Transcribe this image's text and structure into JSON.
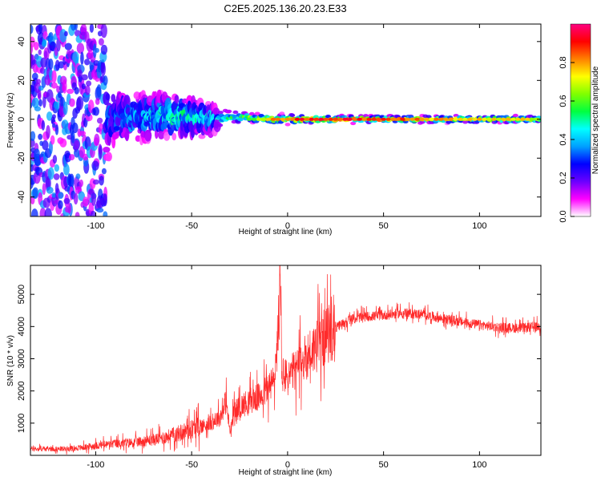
{
  "title": "C2E5.2025.136.20.23.E33",
  "chart_data": [
    {
      "type": "heatmap",
      "title": "C2E5.2025.136.20.23.E33",
      "xlabel": "Height of straight line (km)",
      "ylabel": "Frequency (Hz)",
      "xlim": [
        -134,
        132
      ],
      "ylim": [
        -50,
        49
      ],
      "xticks": [
        -100,
        -50,
        0,
        50,
        100
      ],
      "yticks": [
        -40,
        -20,
        0,
        20,
        40
      ],
      "colorbar": {
        "label": "Normalized spectral amplitude",
        "range": [
          0.0,
          1.0
        ],
        "ticks": [
          0.0,
          0.2,
          0.4,
          0.6,
          0.8
        ],
        "tick_labels": [
          "0.0",
          "0.2",
          "0.4",
          "0.6",
          "0.8"
        ],
        "colors": [
          "#ffffff",
          "#ff00ff",
          "#6a00ff",
          "#0000ff",
          "#00a0ff",
          "#00ffff",
          "#00ff40",
          "#80ff00",
          "#ffff00",
          "#ff8000",
          "#ff0000",
          "#ff0080"
        ]
      },
      "band_profile": {
        "x": [
          -134,
          -110,
          -100,
          -90,
          -80,
          -70,
          -60,
          -50,
          -40,
          -30,
          -20,
          -10,
          0,
          20,
          50,
          100,
          132
        ],
        "center_freq": [
          0,
          0,
          0,
          1,
          1,
          2,
          2,
          1,
          0,
          1,
          1,
          0,
          0,
          0,
          0,
          0,
          0
        ],
        "amplitude": [
          0.15,
          0.2,
          0.3,
          0.35,
          0.4,
          0.45,
          0.5,
          0.5,
          0.45,
          0.5,
          0.6,
          0.75,
          0.85,
          0.9,
          0.85,
          0.75,
          0.7
        ],
        "spread_hz": [
          45,
          40,
          30,
          12,
          10,
          10,
          9,
          8,
          6,
          3,
          2,
          2,
          2,
          1.5,
          1.5,
          1.5,
          1.5
        ]
      }
    },
    {
      "type": "line",
      "xlabel": "Height of straight line (km)",
      "ylabel": "SNR (10 * v/v)",
      "xlim": [
        -134,
        132
      ],
      "ylim": [
        0,
        5900
      ],
      "xticks": [
        -100,
        -50,
        0,
        50,
        100
      ],
      "yticks": [
        1000,
        2000,
        3000,
        4000,
        5000
      ],
      "series": [
        {
          "color": "#ff2a2a",
          "x": [
            -134,
            -120,
            -110,
            -100,
            -90,
            -80,
            -70,
            -60,
            -50,
            -45,
            -40,
            -35,
            -32,
            -30,
            -28,
            -25,
            -20,
            -15,
            -10,
            -7,
            -5,
            -4,
            -3,
            0,
            5,
            10,
            15,
            20,
            25,
            30,
            35,
            40,
            50,
            60,
            70,
            80,
            90,
            100,
            110,
            120,
            132
          ],
          "y": [
            200,
            200,
            220,
            300,
            360,
            400,
            480,
            620,
            820,
            900,
            1000,
            1200,
            1700,
            700,
            1300,
            1500,
            1700,
            1800,
            2100,
            2300,
            3800,
            5700,
            2500,
            2400,
            2700,
            3100,
            3400,
            3700,
            3950,
            4150,
            4250,
            4300,
            4350,
            4420,
            4380,
            4250,
            4150,
            4050,
            3980,
            3950,
            4000
          ]
        }
      ]
    }
  ]
}
